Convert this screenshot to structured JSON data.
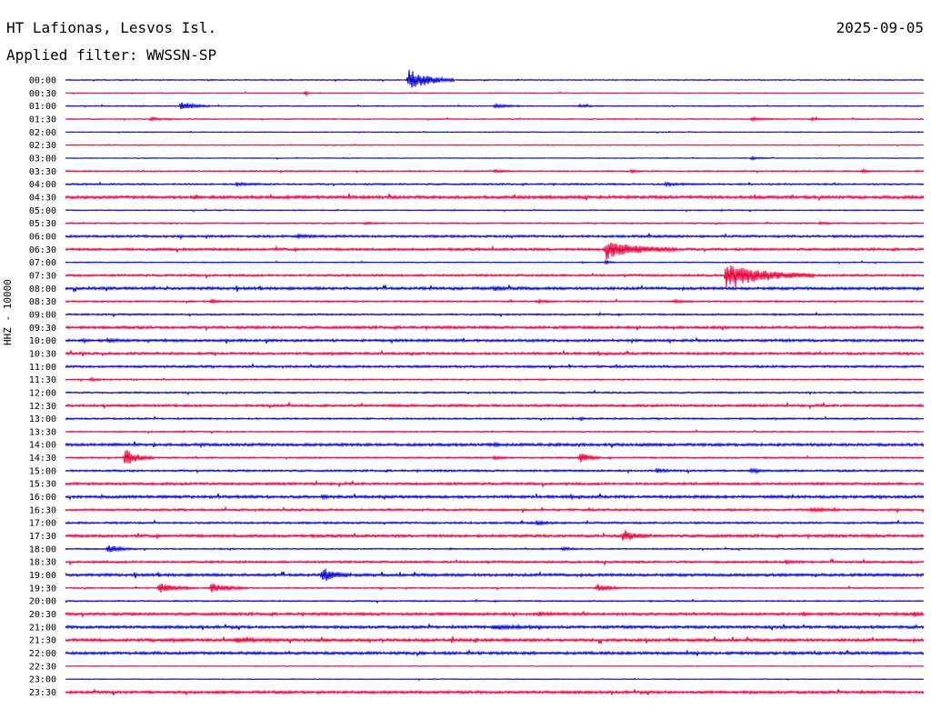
{
  "header": {
    "station": "HT Lafionas, Lesvos Isl.",
    "date": "2025-09-05",
    "filter": "Applied filter: WWSSN-SP"
  },
  "chart_data": {
    "type": "line",
    "ylabel": "HHZ - 10000",
    "colors": {
      "even": "#0000cc",
      "odd": "#e6003c"
    },
    "rows": [
      {
        "label": "00:00",
        "noise": 0.4,
        "events": [
          [
            0.4,
            12,
            3,
            0.05
          ]
        ]
      },
      {
        "label": "00:30",
        "noise": 0.3,
        "events": [
          [
            0.28,
            3,
            1,
            0.005
          ]
        ]
      },
      {
        "label": "01:00",
        "noise": 0.4,
        "events": [
          [
            0.135,
            5,
            2,
            0.03
          ],
          [
            0.5,
            2,
            1,
            0.03
          ],
          [
            0.6,
            1.5,
            1,
            0.02
          ]
        ]
      },
      {
        "label": "01:30",
        "noise": 0.4,
        "events": [
          [
            0.1,
            1.5,
            1,
            0.03
          ],
          [
            0.8,
            1.5,
            1,
            0.03
          ],
          [
            0.87,
            1.5,
            1,
            0.01
          ]
        ]
      },
      {
        "label": "02:00",
        "noise": 0.3,
        "events": []
      },
      {
        "label": "02:30",
        "noise": 0.3,
        "events": []
      },
      {
        "label": "03:00",
        "noise": 0.3,
        "events": [
          [
            0.8,
            1.5,
            1,
            0.02
          ]
        ]
      },
      {
        "label": "03:30",
        "noise": 0.5,
        "events": [
          [
            0.5,
            1.5,
            1,
            0.02
          ],
          [
            0.66,
            1.5,
            1,
            0.01
          ],
          [
            0.93,
            2,
            1,
            0.01
          ]
        ]
      },
      {
        "label": "04:00",
        "noise": 0.6,
        "events": [
          [
            0.2,
            1.5,
            1,
            0.03
          ],
          [
            0.7,
            1.5,
            1,
            0.03
          ]
        ]
      },
      {
        "label": "04:30",
        "noise": 1.1,
        "events": []
      },
      {
        "label": "05:00",
        "noise": 0.4,
        "events": []
      },
      {
        "label": "05:30",
        "noise": 0.5,
        "events": [
          [
            0.35,
            1.2,
            1,
            0.02
          ],
          [
            0.88,
            1.2,
            1,
            0.02
          ]
        ]
      },
      {
        "label": "06:00",
        "noise": 0.8,
        "events": [
          [
            0.27,
            1.5,
            1,
            0.03
          ]
        ]
      },
      {
        "label": "06:30",
        "noise": 0.9,
        "events": [
          [
            0.63,
            10,
            2,
            0.08
          ]
        ]
      },
      {
        "label": "07:00",
        "noise": 0.4,
        "events": [
          [
            0.63,
            2,
            1,
            0.01
          ]
        ]
      },
      {
        "label": "07:30",
        "noise": 0.8,
        "events": [
          [
            0.77,
            13,
            3,
            0.1
          ]
        ]
      },
      {
        "label": "08:00",
        "noise": 1.0,
        "events": [
          [
            0.5,
            1.5,
            1,
            0.03
          ]
        ]
      },
      {
        "label": "08:30",
        "noise": 0.6,
        "events": [
          [
            0.17,
            1.5,
            1,
            0.02
          ],
          [
            0.55,
            1.5,
            1,
            0.02
          ],
          [
            0.71,
            1.5,
            1,
            0.02
          ]
        ]
      },
      {
        "label": "09:00",
        "noise": 0.6,
        "events": []
      },
      {
        "label": "09:30",
        "noise": 1.0,
        "events": []
      },
      {
        "label": "10:00",
        "noise": 0.9,
        "events": [
          [
            0.05,
            1.5,
            1,
            0.02
          ]
        ]
      },
      {
        "label": "10:30",
        "noise": 0.9,
        "events": []
      },
      {
        "label": "11:00",
        "noise": 0.8,
        "events": []
      },
      {
        "label": "11:30",
        "noise": 0.5,
        "events": [
          [
            0.03,
            1.5,
            1,
            0.02
          ]
        ]
      },
      {
        "label": "12:00",
        "noise": 0.6,
        "events": []
      },
      {
        "label": "12:30",
        "noise": 0.9,
        "events": []
      },
      {
        "label": "13:00",
        "noise": 0.6,
        "events": [
          [
            0.6,
            1.5,
            1,
            0.01
          ]
        ]
      },
      {
        "label": "13:30",
        "noise": 0.5,
        "events": []
      },
      {
        "label": "14:00",
        "noise": 1.0,
        "events": [
          [
            0.5,
            1.5,
            1,
            0.01
          ]
        ]
      },
      {
        "label": "14:30",
        "noise": 0.6,
        "events": [
          [
            0.07,
            9,
            2,
            0.03
          ],
          [
            0.5,
            1.5,
            1,
            0.02
          ],
          [
            0.6,
            7,
            2,
            0.02
          ]
        ]
      },
      {
        "label": "15:00",
        "noise": 0.7,
        "events": [
          [
            0.69,
            2,
            1,
            0.02
          ],
          [
            0.8,
            2,
            1,
            0.02
          ]
        ]
      },
      {
        "label": "15:30",
        "noise": 0.9,
        "events": []
      },
      {
        "label": "16:00",
        "noise": 1.0,
        "events": [
          [
            0.3,
            1.5,
            1,
            0.01
          ]
        ]
      },
      {
        "label": "16:30",
        "noise": 0.8,
        "events": [
          [
            0.87,
            2,
            1,
            0.03
          ]
        ]
      },
      {
        "label": "17:00",
        "noise": 0.7,
        "events": [
          [
            0.55,
            2,
            1,
            0.02
          ]
        ]
      },
      {
        "label": "17:30",
        "noise": 1.0,
        "events": [
          [
            0.65,
            6,
            1,
            0.03
          ]
        ]
      },
      {
        "label": "18:00",
        "noise": 0.5,
        "events": [
          [
            0.05,
            4,
            2,
            0.03
          ],
          [
            0.58,
            1.5,
            1,
            0.02
          ]
        ]
      },
      {
        "label": "18:30",
        "noise": 0.8,
        "events": [
          [
            0.84,
            2,
            1,
            0.02
          ]
        ]
      },
      {
        "label": "19:00",
        "noise": 1.0,
        "events": [
          [
            0.3,
            7,
            2,
            0.03
          ]
        ]
      },
      {
        "label": "19:30",
        "noise": 0.5,
        "events": [
          [
            0.11,
            5,
            2,
            0.04
          ],
          [
            0.17,
            5,
            2,
            0.04
          ],
          [
            0.62,
            4,
            1,
            0.03
          ]
        ]
      },
      {
        "label": "20:00",
        "noise": 0.5,
        "events": []
      },
      {
        "label": "20:30",
        "noise": 1.0,
        "events": [
          [
            0.55,
            1.5,
            1,
            0.03
          ],
          [
            0.99,
            2,
            1,
            0.01
          ]
        ]
      },
      {
        "label": "21:00",
        "noise": 1.0,
        "events": [
          [
            0.5,
            2,
            1,
            0.05
          ]
        ]
      },
      {
        "label": "21:30",
        "noise": 1.1,
        "events": [
          [
            0.2,
            2,
            1,
            0.06
          ]
        ]
      },
      {
        "label": "22:00",
        "noise": 1.0,
        "events": []
      },
      {
        "label": "22:30",
        "noise": 0.3,
        "events": []
      },
      {
        "label": "23:00",
        "noise": 0.3,
        "events": []
      },
      {
        "label": "23:30",
        "noise": 1.0,
        "events": []
      }
    ]
  }
}
